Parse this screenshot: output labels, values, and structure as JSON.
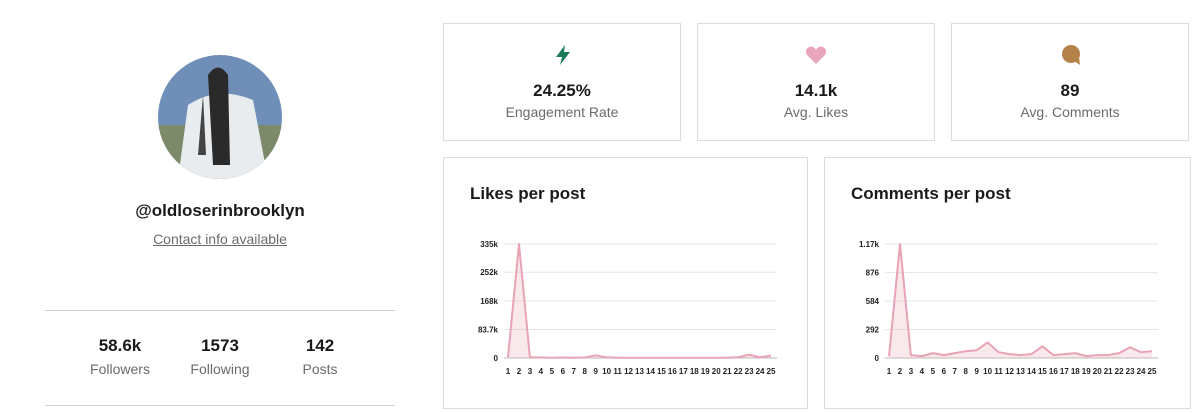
{
  "profile": {
    "handle": "@oldloserinbrooklyn",
    "contact": "Contact info available",
    "stats": [
      {
        "value": "58.6k",
        "label": "Followers"
      },
      {
        "value": "1573",
        "label": "Following"
      },
      {
        "value": "142",
        "label": "Posts"
      }
    ]
  },
  "cards": [
    {
      "value": "24.25%",
      "label": "Engagement Rate"
    },
    {
      "value": "14.1k",
      "label": "Avg. Likes"
    },
    {
      "value": "89",
      "label": "Avg. Comments"
    }
  ],
  "chart_data": [
    {
      "type": "area",
      "title": "Likes per post",
      "categories": [
        1,
        2,
        3,
        4,
        5,
        6,
        7,
        8,
        9,
        10,
        11,
        12,
        13,
        14,
        15,
        16,
        17,
        18,
        19,
        20,
        21,
        22,
        23,
        24,
        25
      ],
      "values": [
        3000,
        335000,
        2000,
        1500,
        1000,
        1500,
        1000,
        1500,
        8000,
        2000,
        1000,
        1000,
        1000,
        1000,
        1000,
        1000,
        1000,
        1000,
        1000,
        1000,
        1000,
        2000,
        10000,
        2000,
        7000
      ],
      "color": "#e8a3b4",
      "ylim": [
        0,
        335000
      ],
      "yticks": [
        0,
        {
          "value": 83700,
          "label": "83.7k"
        },
        {
          "value": 168000,
          "label": "168k"
        },
        {
          "value": 252000,
          "label": "252k"
        },
        {
          "value": 335000,
          "label": "335k"
        }
      ],
      "grid": true
    },
    {
      "type": "area",
      "title": "Comments per post",
      "categories": [
        1,
        2,
        3,
        4,
        5,
        6,
        7,
        8,
        9,
        10,
        11,
        12,
        13,
        14,
        15,
        16,
        17,
        18,
        19,
        20,
        21,
        22,
        23,
        24,
        25
      ],
      "values": [
        20,
        1170,
        30,
        20,
        50,
        30,
        50,
        70,
        80,
        160,
        60,
        40,
        30,
        40,
        120,
        30,
        40,
        50,
        20,
        30,
        30,
        50,
        110,
        60,
        70
      ],
      "color": "#e8a3b4",
      "ylim": [
        0,
        1170
      ],
      "yticks": [
        0,
        292,
        584,
        876,
        {
          "value": 1170,
          "label": "1.17k"
        }
      ],
      "grid": true
    }
  ]
}
